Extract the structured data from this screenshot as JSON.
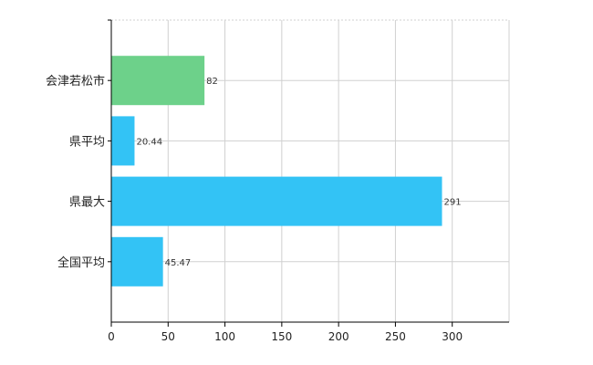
{
  "chart_data": {
    "type": "bar",
    "orientation": "horizontal",
    "categories": [
      "会津若松市",
      "県平均",
      "県最大",
      "全国平均"
    ],
    "values": [
      82,
      20.44,
      291,
      45.47
    ],
    "value_labels": [
      "82",
      "20.44",
      "291",
      "45.47"
    ],
    "bar_colors": [
      "#6dd18a",
      "#33c3f5",
      "#33c3f5",
      "#33c3f5"
    ],
    "xlim": [
      0,
      350
    ],
    "xticks": [
      0,
      50,
      100,
      150,
      200,
      250,
      300
    ],
    "xtick_labels": [
      "0",
      "50",
      "100",
      "150",
      "200",
      "250",
      "300"
    ],
    "grid": true,
    "grid_color": "#d0d0d0",
    "axis_color": "#000000",
    "legend": "none"
  }
}
